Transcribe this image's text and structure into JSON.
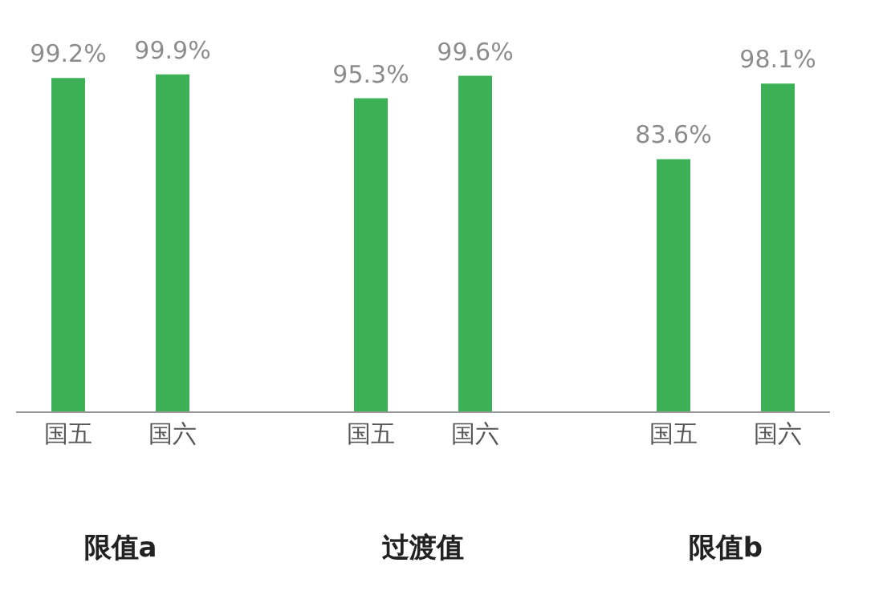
{
  "chart_data": {
    "type": "bar",
    "categories": [
      "国五",
      "国六",
      "国五",
      "国六",
      "国五",
      "国六"
    ],
    "values": [
      99.2,
      99.9,
      95.3,
      99.6,
      83.6,
      98.1
    ],
    "value_labels": [
      "99.2%",
      "99.9%",
      "95.3%",
      "99.6%",
      "83.6%",
      "98.1%"
    ],
    "color": "#3cb054",
    "ylim": [
      35,
      100
    ],
    "tick_labels": "x",
    "annotations": [
      "限值a",
      "过渡值",
      "限值b"
    ]
  }
}
